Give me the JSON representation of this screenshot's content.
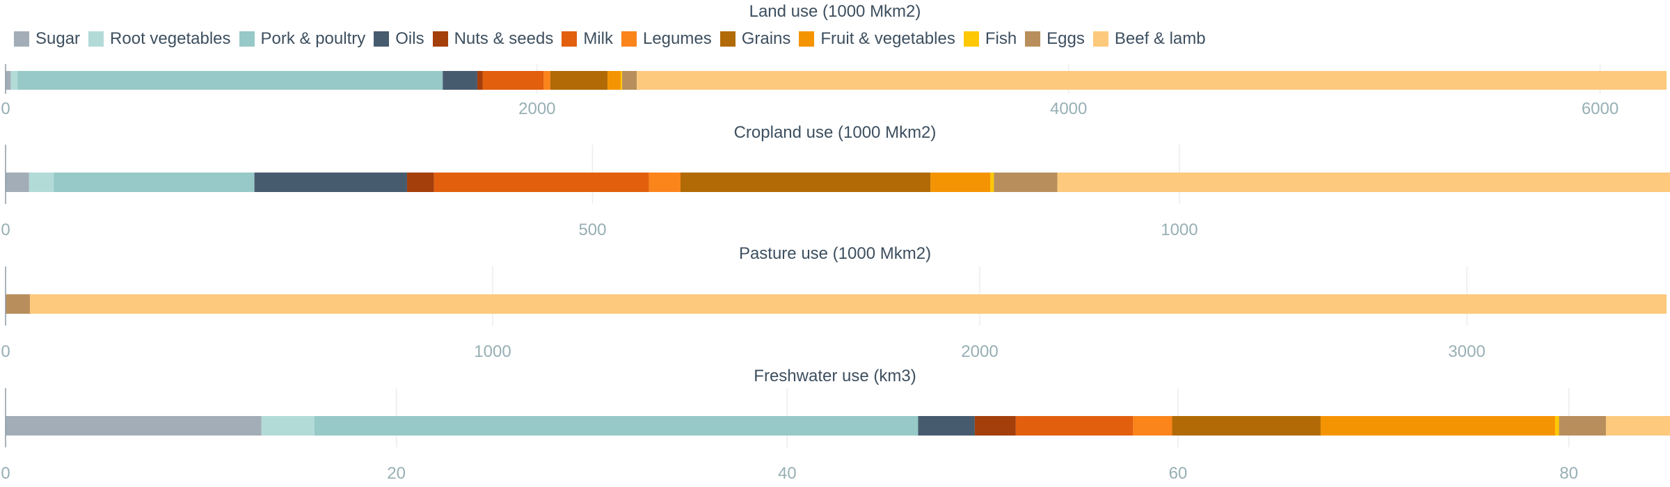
{
  "chart_data": {
    "type": "bar",
    "orientation": "horizontal-stacked",
    "legend": {
      "placement": "top-left",
      "items": [
        {
          "name": "Sugar",
          "color": "#a3adb8"
        },
        {
          "name": "Root vegetables",
          "color": "#b2dbd8"
        },
        {
          "name": "Pork & poultry",
          "color": "#96c9c7"
        },
        {
          "name": "Oils",
          "color": "#475b6e"
        },
        {
          "name": "Nuts & seeds",
          "color": "#a43e0b"
        },
        {
          "name": "Milk",
          "color": "#e15f0d"
        },
        {
          "name": "Legumes",
          "color": "#fb841b"
        },
        {
          "name": "Grains",
          "color": "#b16a05"
        },
        {
          "name": "Fruit & vegetables",
          "color": "#f59402"
        },
        {
          "name": "Fish",
          "color": "#fec805"
        },
        {
          "name": "Eggs",
          "color": "#b88f5c"
        },
        {
          "name": "Beef & lamb",
          "color": "#fcc97d"
        }
      ]
    },
    "grid": true,
    "panels": [
      {
        "title": "Land use (1000 Mkm2)",
        "xlim": [
          0,
          6250
        ],
        "ticks": [
          0,
          2000,
          4000,
          6000
        ],
        "values": [
          20,
          25,
          1600,
          130,
          20,
          230,
          25,
          215,
          50,
          5,
          55,
          3875
        ]
      },
      {
        "title": "Cropland use (1000 Mkm2)",
        "xlim": [
          0,
          1415
        ],
        "ticks": [
          0,
          500,
          1000
        ],
        "values": [
          20,
          21,
          171,
          130,
          23,
          183,
          27,
          213,
          51,
          3,
          54,
          522
        ]
      },
      {
        "title": "Pasture use (1000 Mkm2)",
        "xlim": [
          0,
          3410
        ],
        "ticks": [
          0,
          1000,
          2000,
          3000
        ],
        "values": [
          0,
          0,
          0,
          0,
          0,
          0,
          0,
          0,
          0,
          0,
          50,
          3360
        ]
      },
      {
        "title": "Freshwater use (km3)",
        "xlim": [
          0,
          85
        ],
        "ticks": [
          0,
          20,
          40,
          60,
          80
        ],
        "values": [
          13.1,
          2.7,
          30.9,
          2.9,
          2.1,
          6.0,
          2.0,
          7.6,
          12.0,
          0.2,
          2.4,
          3.4
        ]
      }
    ]
  }
}
